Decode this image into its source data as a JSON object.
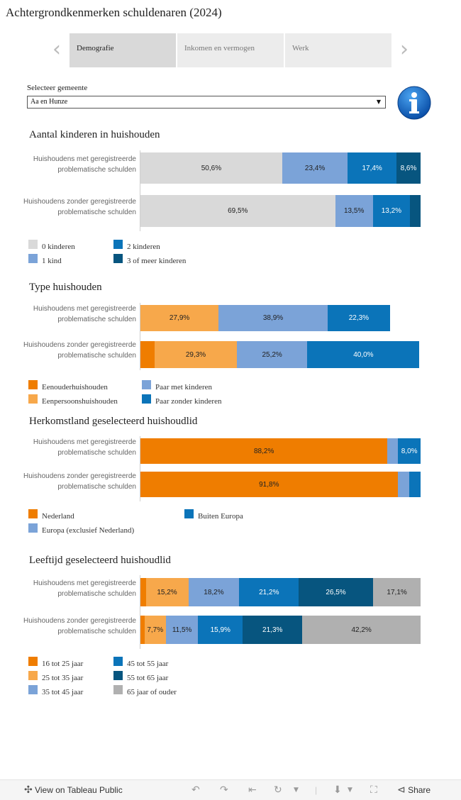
{
  "page": {
    "title": "Achtergrondkenmerken schuldenaren (2024)"
  },
  "nav": {
    "prev_icon": "chevron-left-icon",
    "next_icon": "chevron-right-icon",
    "tabs": [
      {
        "label": "Demografie",
        "active": true
      },
      {
        "label": "Inkomen en vermogen",
        "active": false
      },
      {
        "label": "Werk",
        "active": false
      }
    ]
  },
  "filter": {
    "label": "Selecteer gemeente",
    "value": "Aa en Hunze",
    "icon": "dropdown-caret-icon"
  },
  "info": {
    "icon": "info-icon",
    "glyph": "i"
  },
  "colors": {
    "light_gray": "#d9d9d9",
    "mid_gray": "#b0b0b0",
    "light_blue": "#7ba3d8",
    "blue": "#0b74b9",
    "dark_blue": "#07557f",
    "orange": "#ef7d00",
    "light_orange": "#f7a84b"
  },
  "chart_data": [
    {
      "type": "stacked-bar-horizontal",
      "title": "Aantal kinderen in huishouden",
      "categories": [
        "Huishoudens met geregistreerde problematische schulden",
        "Huishoudens zonder geregistreerde problematische schulden"
      ],
      "unit": "%",
      "series": [
        {
          "name": "0 kinderen",
          "color": "#d9d9d9",
          "label_color": "#222222",
          "values": [
            50.6,
            69.5
          ],
          "labels": [
            "50,6%",
            "69,5%"
          ]
        },
        {
          "name": "1 kind",
          "color": "#7ba3d8",
          "label_color": "#222222",
          "values": [
            23.4,
            13.5
          ],
          "labels": [
            "23,4%",
            "13,5%"
          ]
        },
        {
          "name": "2 kinderen",
          "color": "#0b74b9",
          "label_color": "#ffffff",
          "values": [
            17.4,
            13.2
          ],
          "labels": [
            "17,4%",
            "13,2%"
          ]
        },
        {
          "name": "3 of meer kinderen",
          "color": "#07557f",
          "label_color": "#ffffff",
          "values": [
            8.6,
            3.8
          ],
          "labels": [
            "8,6%",
            ""
          ]
        }
      ]
    },
    {
      "type": "stacked-bar-horizontal",
      "title": "Type huishouden",
      "categories": [
        "Huishoudens met geregistreerde problematische schulden",
        "Huishoudens zonder geregistreerde problematische schulden"
      ],
      "unit": "%",
      "series": [
        {
          "name": "Eenouderhuishouden",
          "color": "#ef7d00",
          "label_color": "#222222",
          "values": [
            0,
            5.1
          ],
          "labels": [
            "",
            ""
          ]
        },
        {
          "name": "Eenpersoonshuishouden",
          "color": "#f7a84b",
          "label_color": "#222222",
          "values": [
            27.9,
            29.3
          ],
          "labels": [
            "27,9%",
            "29,3%"
          ]
        },
        {
          "name": "Paar met kinderen",
          "color": "#7ba3d8",
          "label_color": "#222222",
          "values": [
            38.9,
            25.2
          ],
          "labels": [
            "38,9%",
            "25,2%"
          ]
        },
        {
          "name": "Paar zonder kinderen",
          "color": "#0b74b9",
          "label_color": "#ffffff",
          "values": [
            22.3,
            40.0
          ],
          "labels": [
            "22,3%",
            "40,0%"
          ]
        }
      ]
    },
    {
      "type": "stacked-bar-horizontal",
      "title": "Herkomstland geselecteerd huishoudlid",
      "categories": [
        "Huishoudens met geregistreerde problematische schulden",
        "Huishoudens zonder geregistreerde problematische schulden"
      ],
      "unit": "%",
      "series": [
        {
          "name": "Nederland",
          "color": "#ef7d00",
          "label_color": "#222222",
          "values": [
            88.2,
            91.8
          ],
          "labels": [
            "88,2%",
            "91,8%"
          ]
        },
        {
          "name": "Europa (exclusief Nederland)",
          "color": "#7ba3d8",
          "label_color": "#222222",
          "values": [
            3.8,
            4.2
          ],
          "labels": [
            "",
            ""
          ]
        },
        {
          "name": "Buiten Europa",
          "color": "#0b74b9",
          "label_color": "#ffffff",
          "values": [
            8.0,
            4.0
          ],
          "labels": [
            "8,0%",
            ""
          ]
        }
      ]
    },
    {
      "type": "stacked-bar-horizontal",
      "title": "Leeftijd geselecteerd huishoudlid",
      "categories": [
        "Huishoudens met geregistreerde problematische schulden",
        "Huishoudens zonder geregistreerde problematische schulden"
      ],
      "unit": "%",
      "series": [
        {
          "name": "16 tot 25 jaar",
          "color": "#ef7d00",
          "label_color": "#222222",
          "values": [
            1.9,
            1.4
          ],
          "labels": [
            "",
            ""
          ]
        },
        {
          "name": "25 tot 35 jaar",
          "color": "#f7a84b",
          "label_color": "#222222",
          "values": [
            15.2,
            7.7
          ],
          "labels": [
            "15,2%",
            "7,7%"
          ]
        },
        {
          "name": "35 tot 45 jaar",
          "color": "#7ba3d8",
          "label_color": "#222222",
          "values": [
            18.2,
            11.5
          ],
          "labels": [
            "18,2%",
            "11,5%"
          ]
        },
        {
          "name": "45 tot 55 jaar",
          "color": "#0b74b9",
          "label_color": "#ffffff",
          "values": [
            21.2,
            15.9
          ],
          "labels": [
            "21,2%",
            "15,9%"
          ]
        },
        {
          "name": "55 tot 65 jaar",
          "color": "#07557f",
          "label_color": "#ffffff",
          "values": [
            26.5,
            21.3
          ],
          "labels": [
            "26,5%",
            "21,3%"
          ]
        },
        {
          "name": "65 jaar of ouder",
          "color": "#b0b0b0",
          "label_color": "#222222",
          "values": [
            17.1,
            42.2
          ],
          "labels": [
            "17,1%",
            "42,2%"
          ]
        }
      ]
    }
  ],
  "toolbar": {
    "view_label": "View on Tableau Public",
    "view_icon": "tableau-logo-icon",
    "undo_icon": "undo-icon",
    "redo_icon": "redo-icon",
    "revert_icon": "revert-icon",
    "refresh_icon": "refresh-icon",
    "download_icon": "download-icon",
    "fullscreen_icon": "fullscreen-icon",
    "share_icon": "share-icon",
    "share_label": "Share"
  }
}
